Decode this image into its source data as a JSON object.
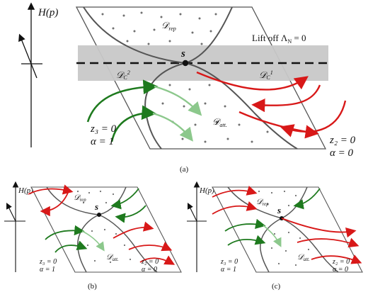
{
  "panel_a": {
    "h_axis": "H(p)",
    "lift_off": "Lift off Λ",
    "lift_off_sub": "N",
    "lift_off_eq": " = 0",
    "saddle": "s",
    "d_rep": "𝒟",
    "d_rep_sub": "rep",
    "d_att": "𝒟",
    "d_att_sub": "att.",
    "d_c2": "𝒟",
    "d_c2_sub": "C",
    "d_c2_sup": "2",
    "d_c1": "𝒟",
    "d_c1_sub": "C",
    "d_c1_sup": "1",
    "left_z": "z₃ = 0",
    "left_alpha": "α = 1",
    "right_z": "z₂ = 0",
    "right_alpha": "α = 0",
    "caption": "(a)"
  },
  "panel_b": {
    "h_axis": "H(p)",
    "saddle": "s",
    "d_rep": "𝒟",
    "d_rep_sub": "rep",
    "d_att": "𝒟",
    "d_att_sub": "att.",
    "left_z": "z₃ = 0",
    "left_alpha": "α = 1",
    "right_z": "z₂ = 0",
    "right_alpha": "α = 0",
    "caption": "(b)"
  },
  "panel_c": {
    "h_axis": "H(p)",
    "saddle": "s",
    "d_rep": "𝒟",
    "d_rep_sub": "rep",
    "d_att": "𝒟",
    "d_att_sub": "att.",
    "left_z": "z₃ = 0",
    "left_alpha": "α = 1",
    "right_z": "z₂ = 0",
    "right_alpha": "α = 0",
    "caption": "(c)"
  },
  "colors": {
    "red": "#d81818",
    "dark_green": "#1e7a1e",
    "light_green": "#8cc88c",
    "band": "#c8c8c8",
    "curve": "#555555"
  }
}
